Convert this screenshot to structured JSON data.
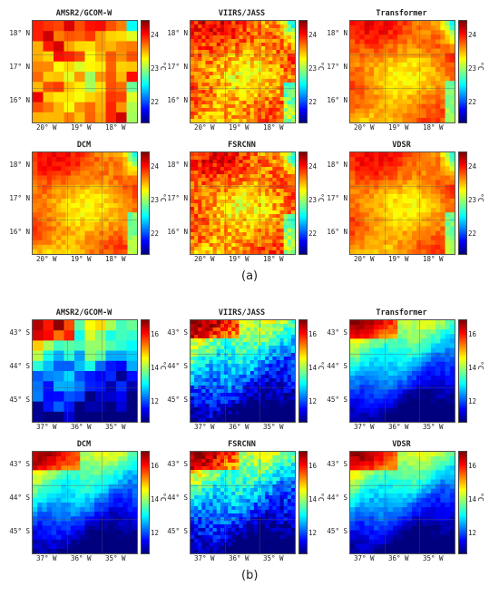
{
  "figure_a": {
    "label": "(a)",
    "lat_ticks": [
      "18° N",
      "17° N",
      "16° N"
    ],
    "lon_ticks": [
      "20° W",
      "19° W",
      "18° W"
    ],
    "colorbar_ticks": [
      "24",
      "23",
      "22"
    ],
    "unit": "°C",
    "panels": [
      {
        "title": "AMSR2/GCOM-W",
        "style": "blocky-warm"
      },
      {
        "title": "VIIRS/JASS",
        "style": "fine-warm"
      },
      {
        "title": "Transformer",
        "style": "smooth-warm"
      },
      {
        "title": "DCM",
        "style": "smooth-warm"
      },
      {
        "title": "FSRCNN",
        "style": "fine-warm"
      },
      {
        "title": "VDSR",
        "style": "smooth-warm"
      }
    ]
  },
  "figure_b": {
    "label": "(b)",
    "lat_ticks": [
      "43° S",
      "44° S",
      "45° S"
    ],
    "lon_ticks": [
      "37° W",
      "36° W",
      "35° W"
    ],
    "colorbar_ticks": [
      "16",
      "14",
      "12"
    ],
    "unit": "°C",
    "panels": [
      {
        "title": "AMSR2/GCOM-W",
        "style": "blocky-cool"
      },
      {
        "title": "VIIRS/JASS",
        "style": "fine-cool"
      },
      {
        "title": "Transformer",
        "style": "smooth-cool"
      },
      {
        "title": "DCM",
        "style": "smooth-cool"
      },
      {
        "title": "FSRCNN",
        "style": "fine-cool"
      },
      {
        "title": "VDSR",
        "style": "smooth-cool"
      }
    ]
  },
  "colors": {
    "jet": [
      "#00007f",
      "#0000ff",
      "#007fff",
      "#00ffff",
      "#7fff7f",
      "#ffff00",
      "#ff7f00",
      "#ff0000",
      "#7f0000"
    ]
  }
}
